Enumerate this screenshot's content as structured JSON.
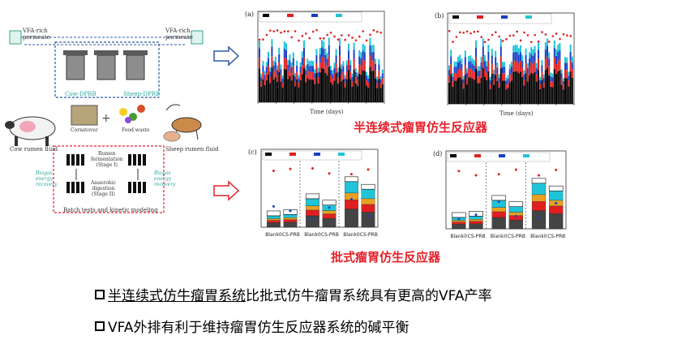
{
  "schematic": {
    "vfa_left": "VFA-rich\npermeate",
    "vfa_right": "VFA-rich\npermeate",
    "reactor_left": "Cow-DPRB",
    "reactor_right": "Sheep-DPRB",
    "cornstover": "Cornstover",
    "food_waste": "Food waste",
    "cow_rumen": "Cow rumen fluid",
    "sheep_rumen": "Sheep rumen fluid",
    "stage1": "Rumen\nfermentation\n(Stage I)",
    "stage2": "Anaerobic\ndigestion\n(Stage II)",
    "biogas_left": "Biogas\nenergy\nrecovery",
    "biogas_right": "Biogas\nenergy\nrecovery",
    "batch_label": "Batch tests and kinetic modeling"
  },
  "chart_labels": {
    "a": "(a)",
    "b": "(b)",
    "c": "(c)",
    "d": "(d)",
    "time_axis": "Time (days)",
    "groups_c": [
      "Blank0",
      "CS-PRB",
      "Blank0",
      "CS-PRB",
      "Blank0",
      "CS-PRB"
    ],
    "groups_d": [
      "Blank0",
      "CS-PRB",
      "Blank0",
      "CS-PRB",
      "Blank0",
      "CS-PRB"
    ]
  },
  "captions": {
    "semi_continuous": "半连续式瘤胃仿生反应器",
    "batch": "批式瘤胃仿生反应器"
  },
  "bullets": [
    {
      "underlined": "半连续式仿牛瘤胃系统",
      "rest": "比批式仿牛瘤胃系统具有更高的VFA产率"
    },
    {
      "underlined": "",
      "rest": "VFA外排有利于维持瘤胃仿生反应器系统的碱平衡"
    }
  ],
  "colors": {
    "caption": "#e4202a",
    "arrow_blue": "#2d5ba8",
    "arrow_red": "#e4202a",
    "acetic": "#000000",
    "propionic": "#e02020",
    "butyric": "#1a3fc4",
    "valeric": "#20c4d8",
    "ph": "#e02020"
  }
}
